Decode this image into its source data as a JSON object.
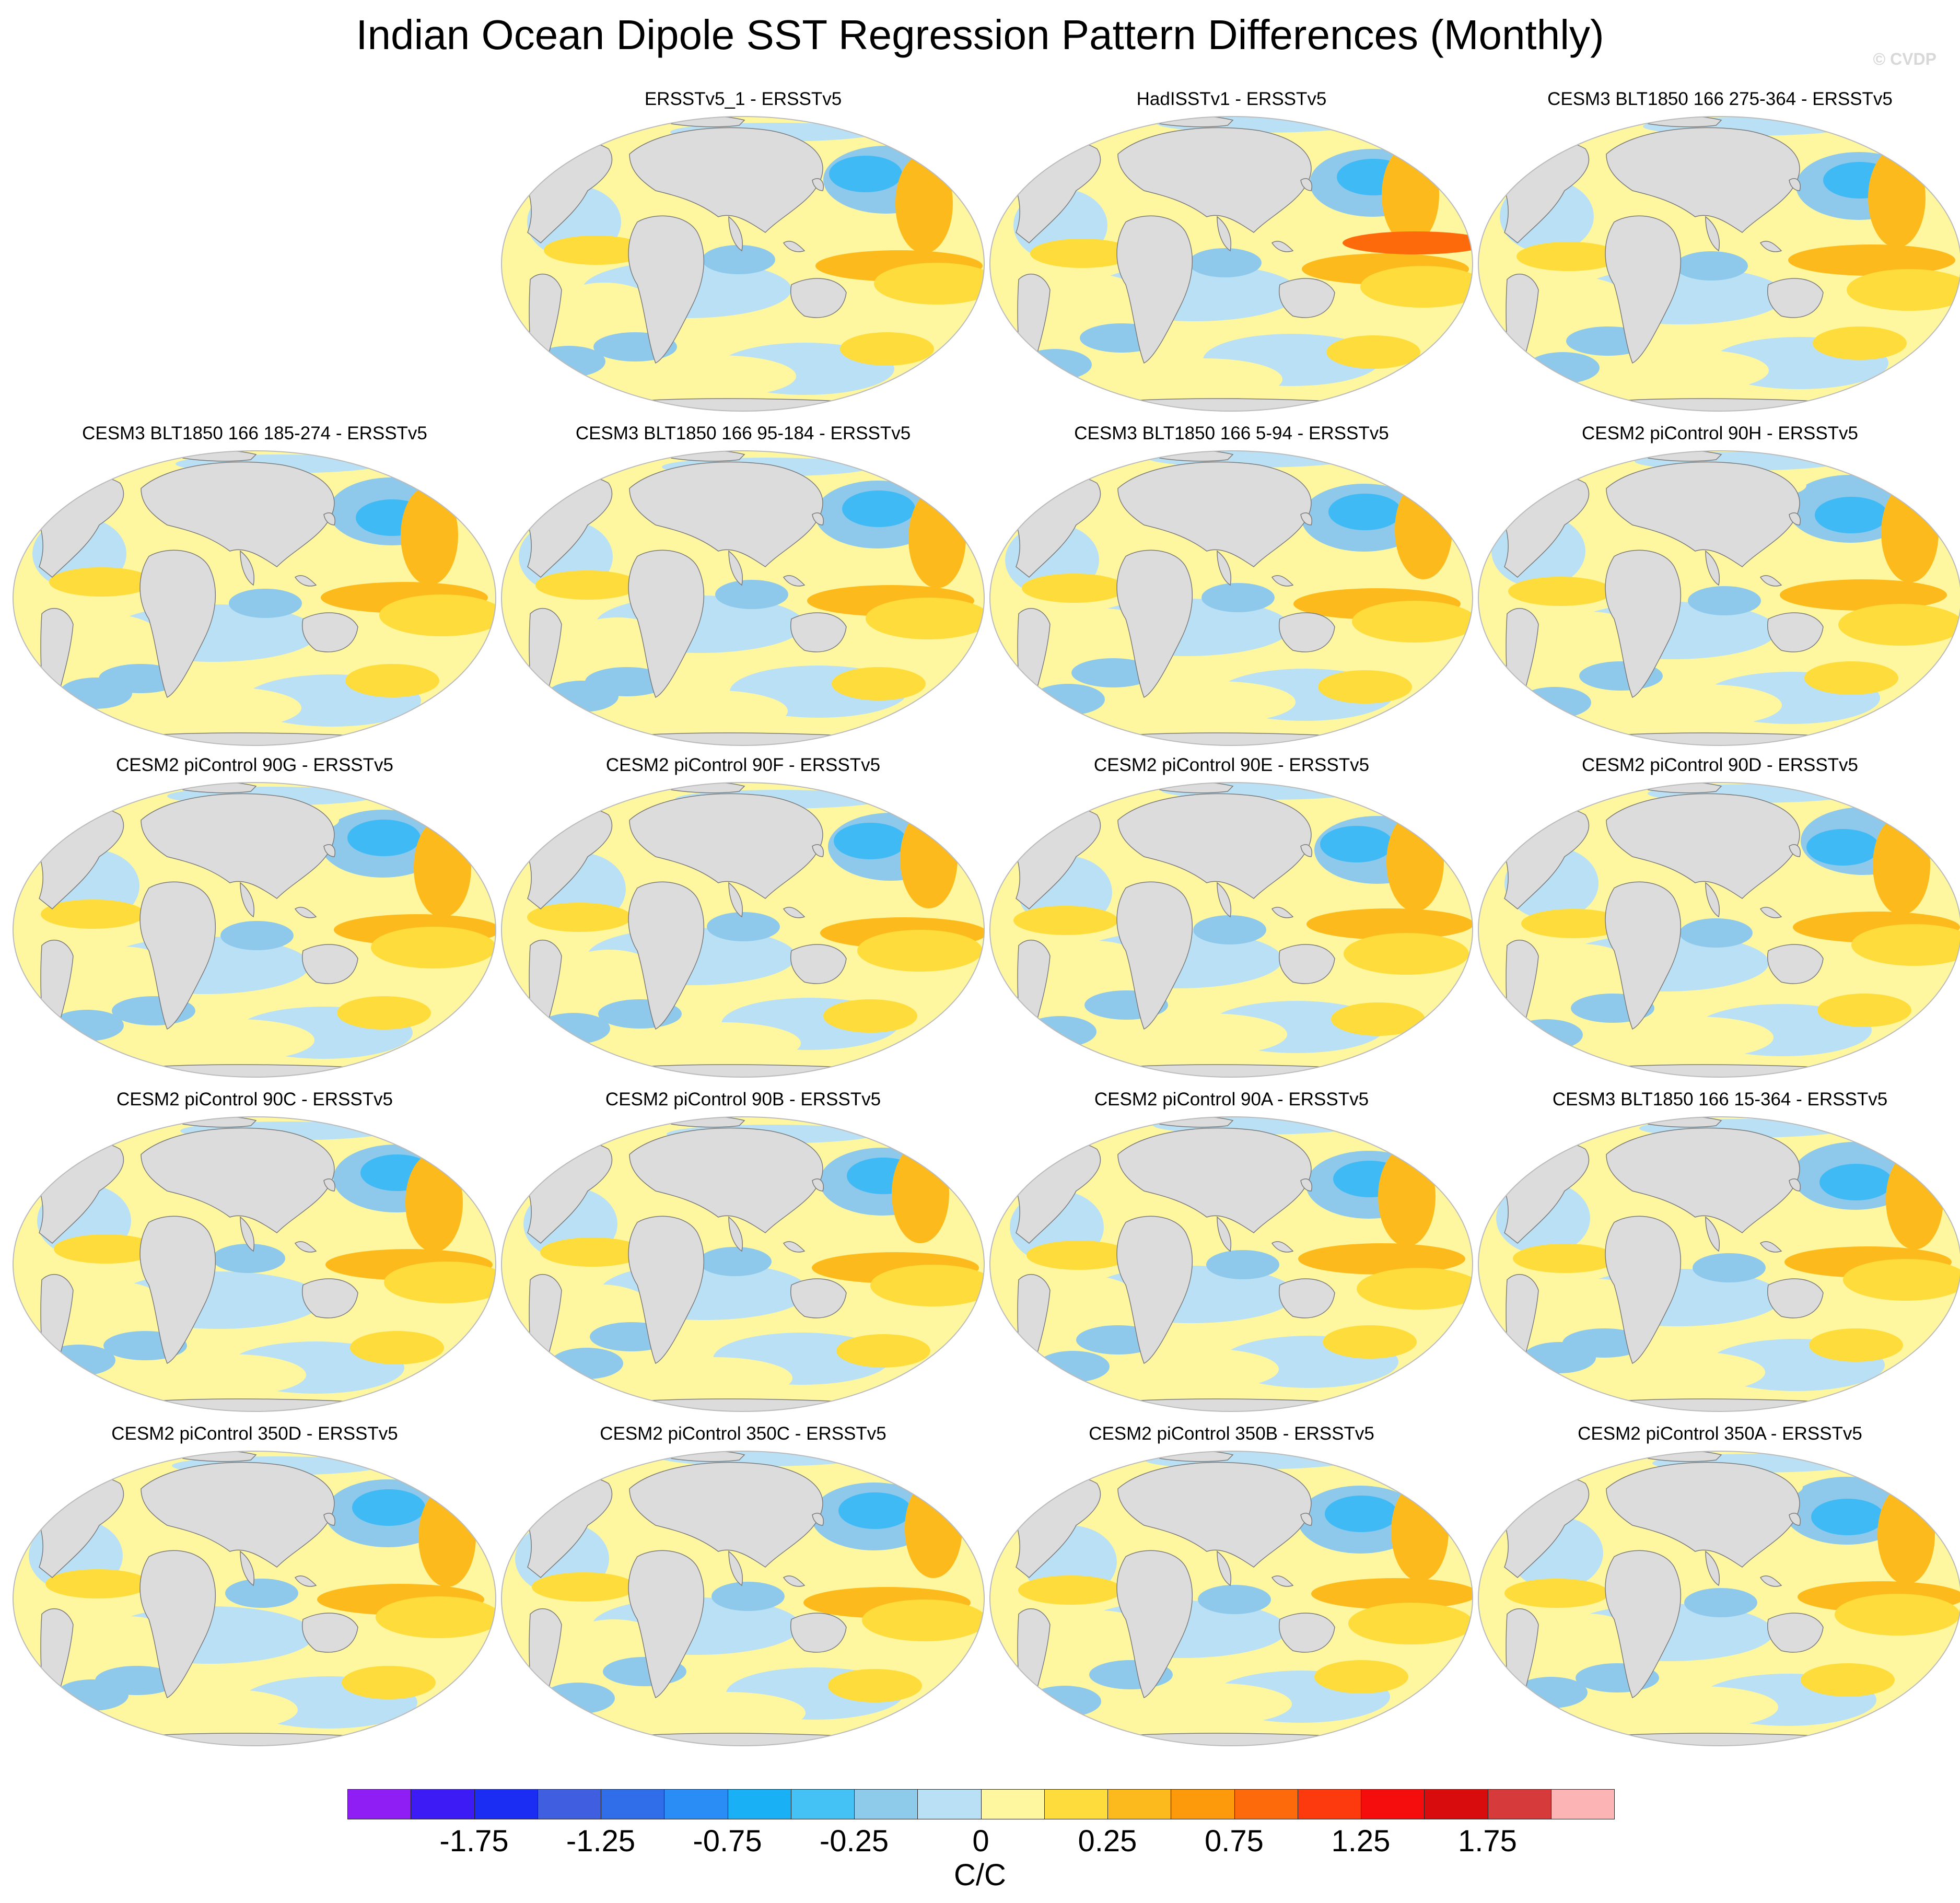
{
  "title": "Indian Ocean Dipole SST Regression Pattern Differences (Monthly)",
  "watermark": "© CVDP",
  "colors": {
    "land": "#dcdcdc",
    "coast": "#7a7a7a",
    "blue1": "#b9e0f5",
    "blue2": "#8ec8ea",
    "blue3": "#3fbaf5",
    "yellow1": "#fff7a0",
    "yellow2": "#fedc3c",
    "orange1": "#fdba1c",
    "red1": "#fd6a0c"
  },
  "panels": [
    {
      "title": "ERSSTv5_1 - ERSSTv5"
    },
    {
      "title": "HadISSTv1 - ERSSTv5"
    },
    {
      "title": "CESM3 BLT1850 166 275-364 - ERSSTv5"
    },
    {
      "title": "CESM3 BLT1850 166 185-274 - ERSSTv5"
    },
    {
      "title": "CESM3 BLT1850 166 95-184 - ERSSTv5"
    },
    {
      "title": "CESM3 BLT1850 166 5-94 - ERSSTv5"
    },
    {
      "title": "CESM2 piControl 90H - ERSSTv5"
    },
    {
      "title": "CESM2 piControl 90G - ERSSTv5"
    },
    {
      "title": "CESM2 piControl 90F - ERSSTv5"
    },
    {
      "title": "CESM2 piControl 90E - ERSSTv5"
    },
    {
      "title": "CESM2 piControl 90D - ERSSTv5"
    },
    {
      "title": "CESM2 piControl 90C - ERSSTv5"
    },
    {
      "title": "CESM2 piControl 90B - ERSSTv5"
    },
    {
      "title": "CESM2 piControl 90A - ERSSTv5"
    },
    {
      "title": "CESM3 BLT1850 166 15-364 - ERSSTv5"
    },
    {
      "title": "CESM2 piControl 350D - ERSSTv5"
    },
    {
      "title": "CESM2 piControl 350C - ERSSTv5"
    },
    {
      "title": "CESM2 piControl 350B - ERSSTv5"
    },
    {
      "title": "CESM2 piControl 350A - ERSSTv5"
    }
  ],
  "colorbar": {
    "units": "C/C",
    "colors": [
      "#8e1ef4",
      "#3d1bf4",
      "#1b2cf3",
      "#3f5ee0",
      "#2f6ee8",
      "#2a8cf5",
      "#1ab0f5",
      "#44c2f5",
      "#8ecbea",
      "#b9e0f5",
      "#fff7a0",
      "#fedc3c",
      "#fdba1c",
      "#fd9a0c",
      "#fd6a0c",
      "#fc3a0e",
      "#f50c0c",
      "#d80c0c",
      "#d63a3a",
      "#fcb4b4"
    ],
    "labels": [
      "-1.75",
      "-1.25",
      "-0.75",
      "-0.25",
      "0",
      "0.25",
      "0.75",
      "1.25",
      "1.75"
    ]
  }
}
